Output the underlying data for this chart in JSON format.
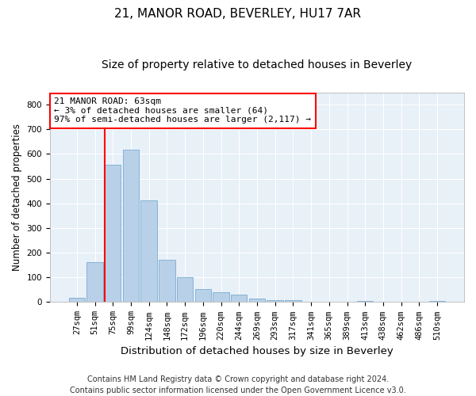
{
  "title": "21, MANOR ROAD, BEVERLEY, HU17 7AR",
  "subtitle": "Size of property relative to detached houses in Beverley",
  "xlabel": "Distribution of detached houses by size in Beverley",
  "ylabel": "Number of detached properties",
  "bar_color": "#b8d0e8",
  "bar_edge_color": "#7aacd0",
  "background_color": "#e8f0f8",
  "grid_color": "#ffffff",
  "fig_background": "#ffffff",
  "categories": [
    "27sqm",
    "51sqm",
    "75sqm",
    "99sqm",
    "124sqm",
    "148sqm",
    "172sqm",
    "196sqm",
    "220sqm",
    "244sqm",
    "269sqm",
    "293sqm",
    "317sqm",
    "341sqm",
    "365sqm",
    "389sqm",
    "413sqm",
    "438sqm",
    "462sqm",
    "486sqm",
    "510sqm"
  ],
  "values": [
    18,
    163,
    558,
    617,
    413,
    170,
    100,
    52,
    40,
    30,
    15,
    8,
    8,
    0,
    0,
    0,
    5,
    0,
    0,
    0,
    5
  ],
  "annotation_line1": "21 MANOR ROAD: 63sqm",
  "annotation_line2": "← 3% of detached houses are smaller (64)",
  "annotation_line3": "97% of semi-detached houses are larger (2,117) →",
  "vline_x": 2.0,
  "ylim": [
    0,
    850
  ],
  "yticks": [
    0,
    100,
    200,
    300,
    400,
    500,
    600,
    700,
    800
  ],
  "footnote": "Contains HM Land Registry data © Crown copyright and database right 2024.\nContains public sector information licensed under the Open Government Licence v3.0.",
  "title_fontsize": 11,
  "subtitle_fontsize": 10,
  "xlabel_fontsize": 9.5,
  "ylabel_fontsize": 8.5,
  "tick_fontsize": 7.5,
  "annotation_fontsize": 8,
  "footnote_fontsize": 7
}
